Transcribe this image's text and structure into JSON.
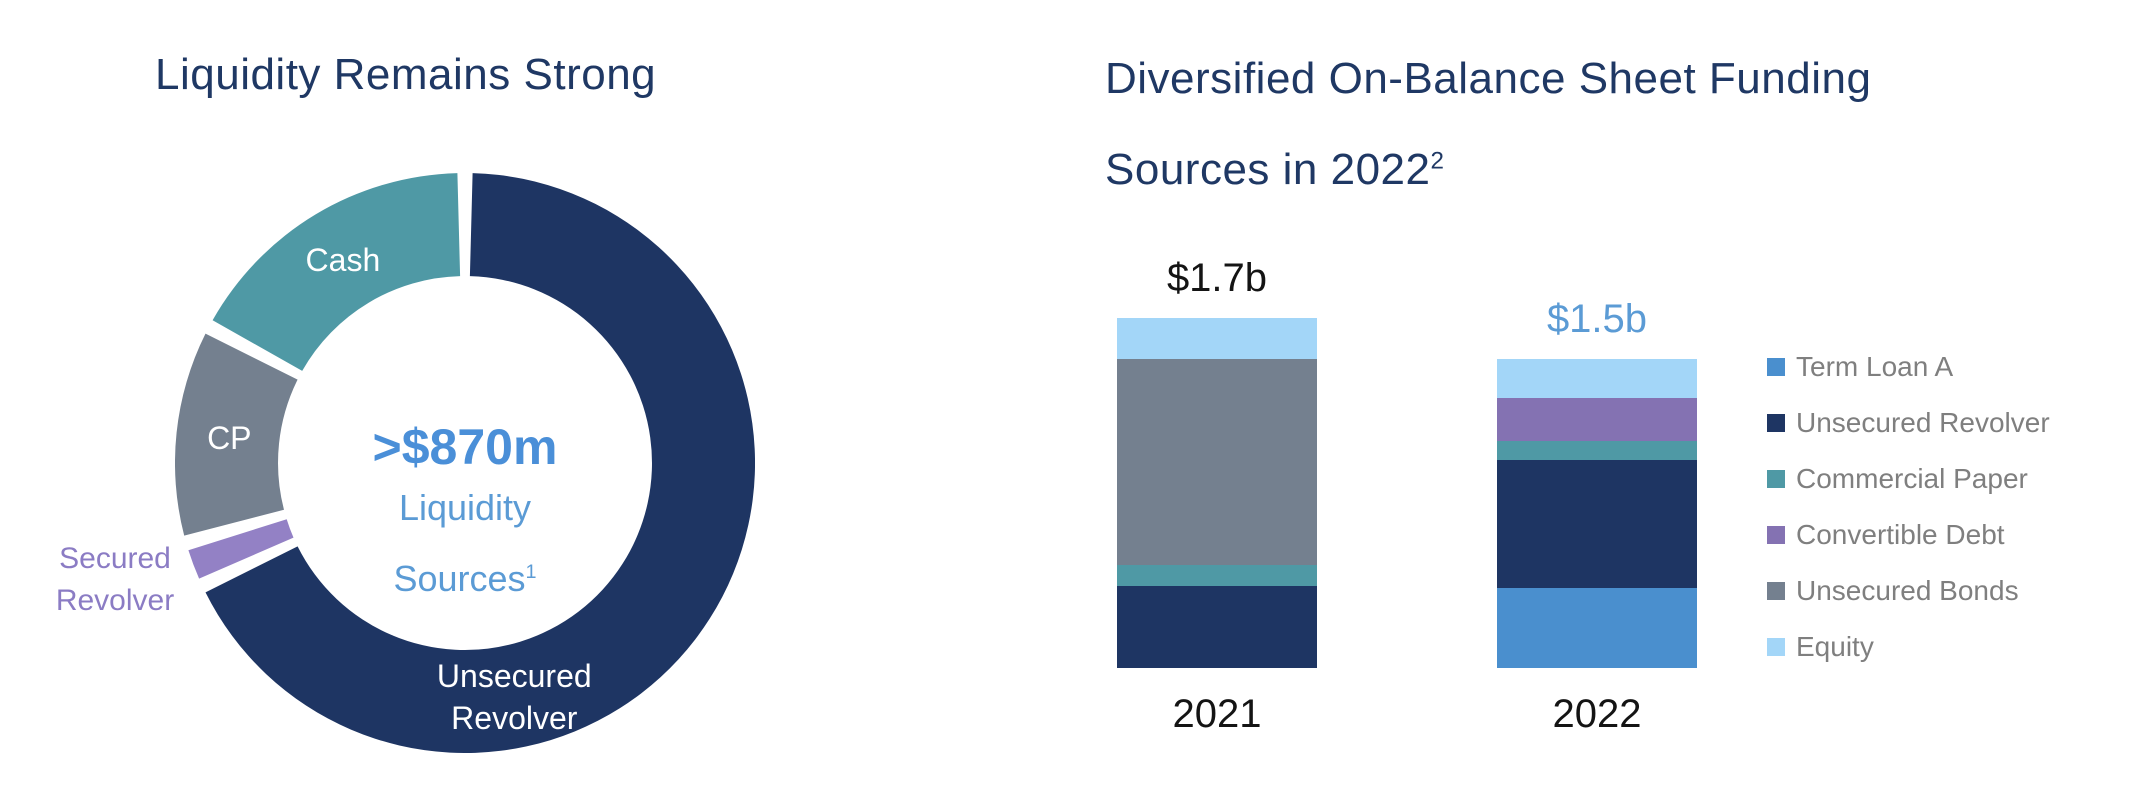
{
  "page": {
    "background": "#ffffff"
  },
  "colors": {
    "title_navy": "#1F3864",
    "navy": "#1E3563",
    "accent_blue": "#4A8FD8",
    "light_blue_text": "#5B9BD5",
    "legend_text": "#7F7F7F",
    "black_text": "#141414"
  },
  "chart_data": [
    {
      "type": "pie",
      "subtype": "donut",
      "title": "Liquidity Remains Strong",
      "center_label": {
        "value": ">$870m",
        "line1": "Liquidity",
        "line2": "Sources",
        "line2_superscript": "1"
      },
      "slices": [
        {
          "label": "Unsecured Revolver",
          "label_lines": [
            "Unsecured",
            "Revolver"
          ],
          "share_pct": 69,
          "color": "#1E3563",
          "start_deg": 1.5,
          "end_deg": 243.5,
          "label_position": "inside",
          "label_angle_deg": 168,
          "label_color": "#FFFFFF"
        },
        {
          "label": "Secured Revolver",
          "label_lines": [
            "Secured",
            "Revolver"
          ],
          "share_pct": 2,
          "color": "#9381C5",
          "start_deg": 246.5,
          "end_deg": 252.5,
          "label_position": "outside",
          "label_color": "#8B7CC4"
        },
        {
          "label": "CP",
          "label_lines": [
            "CP"
          ],
          "share_pct": 12,
          "color": "#74808F",
          "start_deg": 255.5,
          "end_deg": 296.5,
          "label_position": "inside",
          "label_angle_deg": 276,
          "label_color": "#FFFFFF"
        },
        {
          "label": "Cash",
          "label_lines": [
            "Cash"
          ],
          "share_pct": 17,
          "color": "#4F99A5",
          "start_deg": 299.5,
          "end_deg": 358.5,
          "label_position": "inside",
          "label_angle_deg": 329,
          "label_color": "#FFFFFF"
        }
      ]
    },
    {
      "type": "bar",
      "subtype": "stacked",
      "title_lines": [
        "Diversified On-Balance Sheet Funding",
        "Sources in 2022"
      ],
      "title_superscript": "2",
      "categories": [
        "2021",
        "2022"
      ],
      "totals": [
        {
          "label": "$1.7b",
          "value_b": 1.7,
          "label_color": "#141414"
        },
        {
          "label": "$1.5b",
          "value_b": 1.5,
          "label_color": "#5B9BD5"
        }
      ],
      "values_unit": "$ billions",
      "series": [
        {
          "name": "Term Loan A",
          "color": "#4A8FCE",
          "values": [
            0,
            0.39
          ]
        },
        {
          "name": "Unsecured Revolver",
          "color": "#1E3563",
          "values": [
            0.4,
            0.62
          ]
        },
        {
          "name": "Commercial Paper",
          "color": "#4F99A5",
          "values": [
            0.1,
            0.09
          ]
        },
        {
          "name": "Convertible Debt",
          "color": "#8472B2",
          "values": [
            0,
            0.21
          ]
        },
        {
          "name": "Unsecured Bonds",
          "color": "#74808F",
          "values": [
            1.0,
            0
          ]
        },
        {
          "name": "Equity",
          "color": "#A3D6F8",
          "values": [
            0.2,
            0.19
          ]
        }
      ],
      "legend": {
        "position": "right",
        "items": [
          "Term Loan A",
          "Unsecured Revolver",
          "Commercial Paper",
          "Convertible Debt",
          "Unsecured Bonds",
          "Equity"
        ]
      }
    }
  ]
}
